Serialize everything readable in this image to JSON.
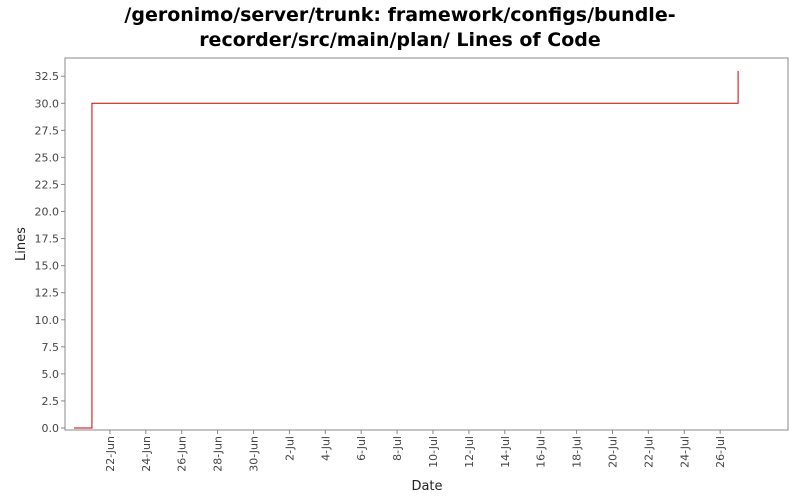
{
  "chart_data": {
    "type": "line",
    "title_lines": [
      "/geronimo/server/trunk: framework/configs/bundle-",
      "recorder/src/main/plan/ Lines of Code"
    ],
    "xlabel": "Date",
    "ylabel": "Lines",
    "ylim": [
      0,
      34
    ],
    "yticks": [
      0.0,
      2.5,
      5.0,
      7.5,
      10.0,
      12.5,
      15.0,
      17.5,
      20.0,
      22.5,
      25.0,
      27.5,
      30.0,
      32.5
    ],
    "ytick_labels": [
      "0.0",
      "2.5",
      "5.0",
      "7.5",
      "10.0",
      "12.5",
      "15.0",
      "17.5",
      "20.0",
      "22.5",
      "25.0",
      "27.5",
      "30.0",
      "32.5"
    ],
    "xlim": [
      "2006-06-20",
      "2006-07-29"
    ],
    "xticks": [
      "2006-06-22",
      "2006-06-24",
      "2006-06-26",
      "2006-06-28",
      "2006-06-30",
      "2006-07-02",
      "2006-07-04",
      "2006-07-06",
      "2006-07-08",
      "2006-07-10",
      "2006-07-12",
      "2006-07-14",
      "2006-07-16",
      "2006-07-18",
      "2006-07-20",
      "2006-07-22",
      "2006-07-24",
      "2006-07-26"
    ],
    "xtick_labels": [
      "22-Jun",
      "24-Jun",
      "26-Jun",
      "28-Jun",
      "30-Jun",
      "2-Jul",
      "4-Jul",
      "6-Jul",
      "8-Jul",
      "10-Jul",
      "12-Jul",
      "14-Jul",
      "16-Jul",
      "18-Jul",
      "20-Jul",
      "22-Jul",
      "24-Jul",
      "26-Jul"
    ],
    "series": [
      {
        "color": "#cc0000",
        "step": true,
        "points": [
          {
            "x": "2006-06-20",
            "y": 0
          },
          {
            "x": "2006-06-21",
            "y": 30
          },
          {
            "x": "2006-07-27",
            "y": 33
          }
        ]
      }
    ],
    "grid": false,
    "legend": "none"
  }
}
